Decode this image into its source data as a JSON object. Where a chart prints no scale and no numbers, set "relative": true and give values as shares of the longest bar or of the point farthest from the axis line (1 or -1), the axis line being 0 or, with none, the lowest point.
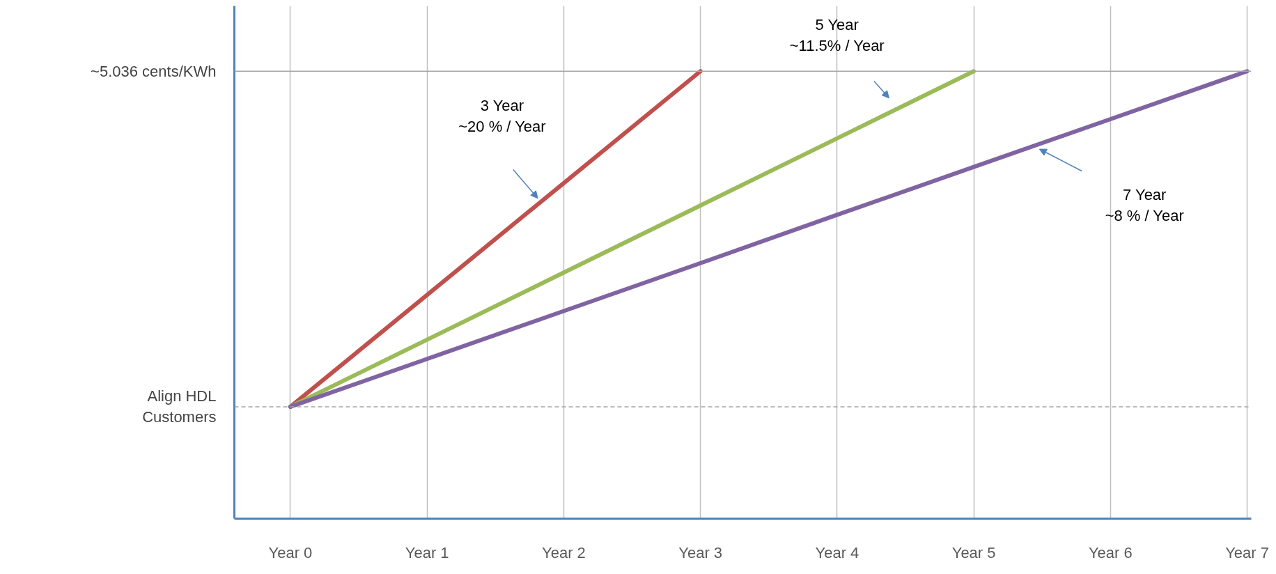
{
  "chart_data": {
    "type": "line",
    "relative": true,
    "categories": [
      "Year 0",
      "Year 1",
      "Year 2",
      "Year 3",
      "Year 4",
      "Year 5",
      "Year 6",
      "Year 7"
    ],
    "series": [
      {
        "color": "#c0504d",
        "values": [
          0.25,
          0.5,
          0.75,
          1,
          null,
          null,
          null,
          null
        ]
      },
      {
        "color": "#9bbb59",
        "values": [
          0.25,
          0.4,
          0.55,
          0.7,
          0.85,
          1,
          null,
          null
        ]
      },
      {
        "color": "#8064a2",
        "values": [
          0.25,
          0.357,
          0.464,
          0.571,
          0.679,
          0.786,
          0.893,
          1
        ]
      }
    ],
    "ref_lines": [
      {
        "axis": "y",
        "value": 1,
        "label": "~5.036 cents/KWh",
        "color": "#a6a6a6",
        "line_style": "solid"
      },
      {
        "axis": "y",
        "value": 0.25,
        "label": "Align HDL\nCustomers",
        "color": "#a6a6a6",
        "line_style": "dashed"
      }
    ],
    "annotations": [
      "3 Year\n~20 % / Year",
      "5 Year\n~11.5% / Year",
      "7 Year\n~8 % / Year"
    ],
    "grid": "x",
    "marker": "none",
    "line_style": "solid"
  }
}
